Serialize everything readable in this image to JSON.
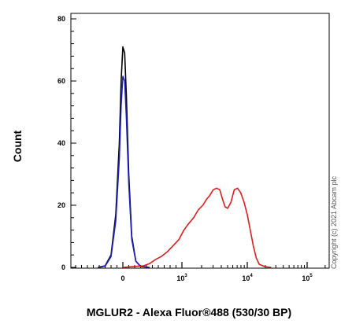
{
  "chart_data": {
    "type": "line",
    "title": "",
    "xlabel": "MGLUR2 - Alexa Fluor®488 (530/30 BP)",
    "ylabel": "Count",
    "ylim": [
      0,
      80
    ],
    "yticks": [
      0,
      20,
      40,
      60,
      80
    ],
    "x_scale": "biexponential",
    "xticks": [
      {
        "base": "0",
        "exp": ""
      },
      {
        "base": "10",
        "exp": "3"
      },
      {
        "base": "10",
        "exp": "4"
      },
      {
        "base": "10",
        "exp": "5"
      }
    ],
    "grid": false,
    "legend": "none",
    "copyright": "Copyright (c) 2021 Abcam plc",
    "series": [
      {
        "color": "#000000",
        "points": [
          [
            -0.42,
            0
          ],
          [
            -0.3,
            0.5
          ],
          [
            -0.2,
            4
          ],
          [
            -0.12,
            17
          ],
          [
            -0.06,
            40
          ],
          [
            -0.03,
            60
          ],
          [
            0,
            71
          ],
          [
            0.03,
            69
          ],
          [
            0.06,
            55
          ],
          [
            0.1,
            30
          ],
          [
            0.15,
            10
          ],
          [
            0.22,
            2
          ],
          [
            0.3,
            0.3
          ],
          [
            0.45,
            0
          ]
        ]
      },
      {
        "color": "#1f1fbf",
        "points": [
          [
            -0.4,
            0
          ],
          [
            -0.3,
            0.4
          ],
          [
            -0.2,
            3.5
          ],
          [
            -0.12,
            15
          ],
          [
            -0.06,
            35
          ],
          [
            -0.03,
            52
          ],
          [
            0,
            61.5
          ],
          [
            0.03,
            60
          ],
          [
            0.06,
            48
          ],
          [
            0.1,
            27
          ],
          [
            0.15,
            9
          ],
          [
            0.22,
            2
          ],
          [
            0.3,
            0.3
          ],
          [
            0.45,
            0
          ]
        ]
      },
      {
        "color": "#d42020",
        "points": [
          [
            0,
            0
          ],
          [
            0.2,
            0.3
          ],
          [
            0.35,
            0.5
          ],
          [
            0.45,
            1.2
          ],
          [
            0.55,
            2.5
          ],
          [
            0.65,
            3.5
          ],
          [
            0.75,
            5
          ],
          [
            0.85,
            7
          ],
          [
            0.95,
            9
          ],
          [
            1.03,
            12
          ],
          [
            1.1,
            14
          ],
          [
            1.18,
            16
          ],
          [
            1.25,
            18.5
          ],
          [
            1.32,
            20
          ],
          [
            1.38,
            22
          ],
          [
            1.42,
            23
          ],
          [
            1.48,
            25
          ],
          [
            1.53,
            25.5
          ],
          [
            1.58,
            25
          ],
          [
            1.62,
            22
          ],
          [
            1.66,
            19.5
          ],
          [
            1.7,
            19
          ],
          [
            1.75,
            21
          ],
          [
            1.8,
            25
          ],
          [
            1.85,
            25.5
          ],
          [
            1.9,
            24
          ],
          [
            1.95,
            21
          ],
          [
            2.0,
            17
          ],
          [
            2.05,
            12
          ],
          [
            2.1,
            7
          ],
          [
            2.15,
            3
          ],
          [
            2.2,
            1
          ],
          [
            2.3,
            0.2
          ],
          [
            2.4,
            0
          ]
        ]
      }
    ]
  }
}
